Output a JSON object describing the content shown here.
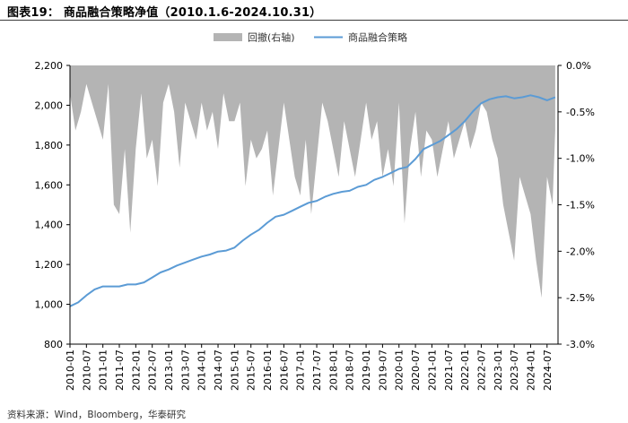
{
  "header": {
    "title": "图表19：  商品融合策略净值（2010.1.6-2024.10.31）"
  },
  "footer": {
    "source": "资料来源：Wind，Bloomberg，华泰研究"
  },
  "colors": {
    "line": "#5b9bd5",
    "drawdown": "#b4b4b4",
    "axis": "#000000",
    "title_rule": "#3b3b3b"
  },
  "chart_data": {
    "type": "line",
    "legend_position": "top-center",
    "grid": false,
    "x_tick_labels": [
      "2010-01",
      "2010-07",
      "2011-01",
      "2011-07",
      "2012-01",
      "2012-07",
      "2013-01",
      "2013-07",
      "2014-01",
      "2014-07",
      "2015-01",
      "2015-07",
      "2016-01",
      "2016-07",
      "2017-01",
      "2017-07",
      "2018-01",
      "2018-07",
      "2019-01",
      "2019-07",
      "2020-01",
      "2020-07",
      "2021-01",
      "2021-07",
      "2022-01",
      "2022-07",
      "2023-01",
      "2023-07",
      "2024-01",
      "2024-07"
    ],
    "y_left": {
      "ticks": [
        "800",
        "1,000",
        "1,200",
        "1,400",
        "1,600",
        "1,800",
        "2,000",
        "2,200"
      ],
      "lim": [
        800,
        2200
      ]
    },
    "y_right": {
      "ticks": [
        "0.0%",
        "-0.5%",
        "-1.0%",
        "-1.5%",
        "-2.0%",
        "-2.5%",
        "-3.0%"
      ],
      "lim": [
        -3.0,
        0.0
      ]
    },
    "series": [
      {
        "name": "商品融合策略",
        "kind": "line",
        "axis": "left",
        "x": [
          "2010-01",
          "2010-04",
          "2010-07",
          "2010-10",
          "2011-01",
          "2011-04",
          "2011-07",
          "2011-10",
          "2012-01",
          "2012-04",
          "2012-07",
          "2012-10",
          "2013-01",
          "2013-04",
          "2013-07",
          "2013-10",
          "2014-01",
          "2014-04",
          "2014-07",
          "2014-10",
          "2015-01",
          "2015-04",
          "2015-07",
          "2015-10",
          "2016-01",
          "2016-04",
          "2016-07",
          "2016-10",
          "2017-01",
          "2017-04",
          "2017-07",
          "2017-10",
          "2018-01",
          "2018-04",
          "2018-07",
          "2018-10",
          "2019-01",
          "2019-04",
          "2019-07",
          "2019-10",
          "2020-01",
          "2020-04",
          "2020-07",
          "2020-10",
          "2021-01",
          "2021-04",
          "2021-07",
          "2021-10",
          "2022-01",
          "2022-04",
          "2022-07",
          "2022-10",
          "2023-01",
          "2023-04",
          "2023-07",
          "2023-10",
          "2024-01",
          "2024-04",
          "2024-07",
          "2024-10"
        ],
        "values": [
          990,
          1010,
          1045,
          1075,
          1090,
          1090,
          1090,
          1100,
          1100,
          1110,
          1135,
          1160,
          1175,
          1195,
          1210,
          1225,
          1240,
          1250,
          1265,
          1270,
          1285,
          1320,
          1350,
          1375,
          1410,
          1440,
          1450,
          1470,
          1490,
          1510,
          1520,
          1540,
          1555,
          1565,
          1570,
          1590,
          1600,
          1625,
          1640,
          1660,
          1680,
          1690,
          1730,
          1780,
          1800,
          1820,
          1850,
          1880,
          1920,
          1970,
          2010,
          2030,
          2040,
          2045,
          2035,
          2040,
          2050,
          2040,
          2025,
          2040
        ]
      },
      {
        "name": "回撤(右轴)",
        "kind": "area",
        "axis": "right",
        "x": [
          "2010-01",
          "2010-03",
          "2010-05",
          "2010-07",
          "2010-09",
          "2010-11",
          "2011-01",
          "2011-03",
          "2011-05",
          "2011-07",
          "2011-09",
          "2011-11",
          "2012-01",
          "2012-03",
          "2012-05",
          "2012-07",
          "2012-09",
          "2012-11",
          "2013-01",
          "2013-03",
          "2013-05",
          "2013-07",
          "2013-09",
          "2013-11",
          "2014-01",
          "2014-03",
          "2014-05",
          "2014-07",
          "2014-09",
          "2014-11",
          "2015-01",
          "2015-03",
          "2015-05",
          "2015-07",
          "2015-09",
          "2015-11",
          "2016-01",
          "2016-03",
          "2016-05",
          "2016-07",
          "2016-09",
          "2016-11",
          "2017-01",
          "2017-03",
          "2017-05",
          "2017-07",
          "2017-09",
          "2017-11",
          "2018-01",
          "2018-03",
          "2018-05",
          "2018-07",
          "2018-09",
          "2018-11",
          "2019-01",
          "2019-03",
          "2019-05",
          "2019-07",
          "2019-09",
          "2019-11",
          "2020-01",
          "2020-03",
          "2020-05",
          "2020-07",
          "2020-09",
          "2020-11",
          "2021-01",
          "2021-03",
          "2021-05",
          "2021-07",
          "2021-09",
          "2021-11",
          "2022-01",
          "2022-03",
          "2022-05",
          "2022-07",
          "2022-09",
          "2022-11",
          "2023-01",
          "2023-03",
          "2023-05",
          "2023-07",
          "2023-09",
          "2023-11",
          "2024-01",
          "2024-03",
          "2024-05",
          "2024-07",
          "2024-09",
          "2024-10"
        ],
        "values": [
          -0.3,
          -0.7,
          -0.5,
          -0.2,
          -0.4,
          -0.6,
          -0.8,
          -0.2,
          -1.5,
          -1.6,
          -0.9,
          -1.8,
          -0.9,
          -0.3,
          -1.0,
          -0.8,
          -1.3,
          -0.4,
          -0.2,
          -0.5,
          -1.1,
          -0.4,
          -0.6,
          -0.8,
          -0.4,
          -0.7,
          -0.5,
          -0.9,
          -0.3,
          -0.6,
          -0.6,
          -0.4,
          -1.3,
          -0.8,
          -1.0,
          -0.9,
          -0.7,
          -1.4,
          -0.9,
          -0.4,
          -0.8,
          -1.2,
          -1.4,
          -0.8,
          -1.6,
          -1.0,
          -0.4,
          -0.6,
          -0.9,
          -1.2,
          -0.6,
          -0.9,
          -1.2,
          -0.8,
          -0.4,
          -0.8,
          -0.6,
          -1.2,
          -0.9,
          -1.3,
          -0.4,
          -1.7,
          -0.9,
          -0.5,
          -1.2,
          -0.7,
          -0.8,
          -1.2,
          -0.9,
          -0.6,
          -1.0,
          -0.8,
          -0.6,
          -0.9,
          -0.7,
          -0.4,
          -0.5,
          -0.8,
          -1.0,
          -1.5,
          -1.8,
          -2.1,
          -1.2,
          -1.4,
          -1.6,
          -2.1,
          -2.5,
          -1.2,
          -1.5,
          -0.7
        ]
      }
    ]
  }
}
